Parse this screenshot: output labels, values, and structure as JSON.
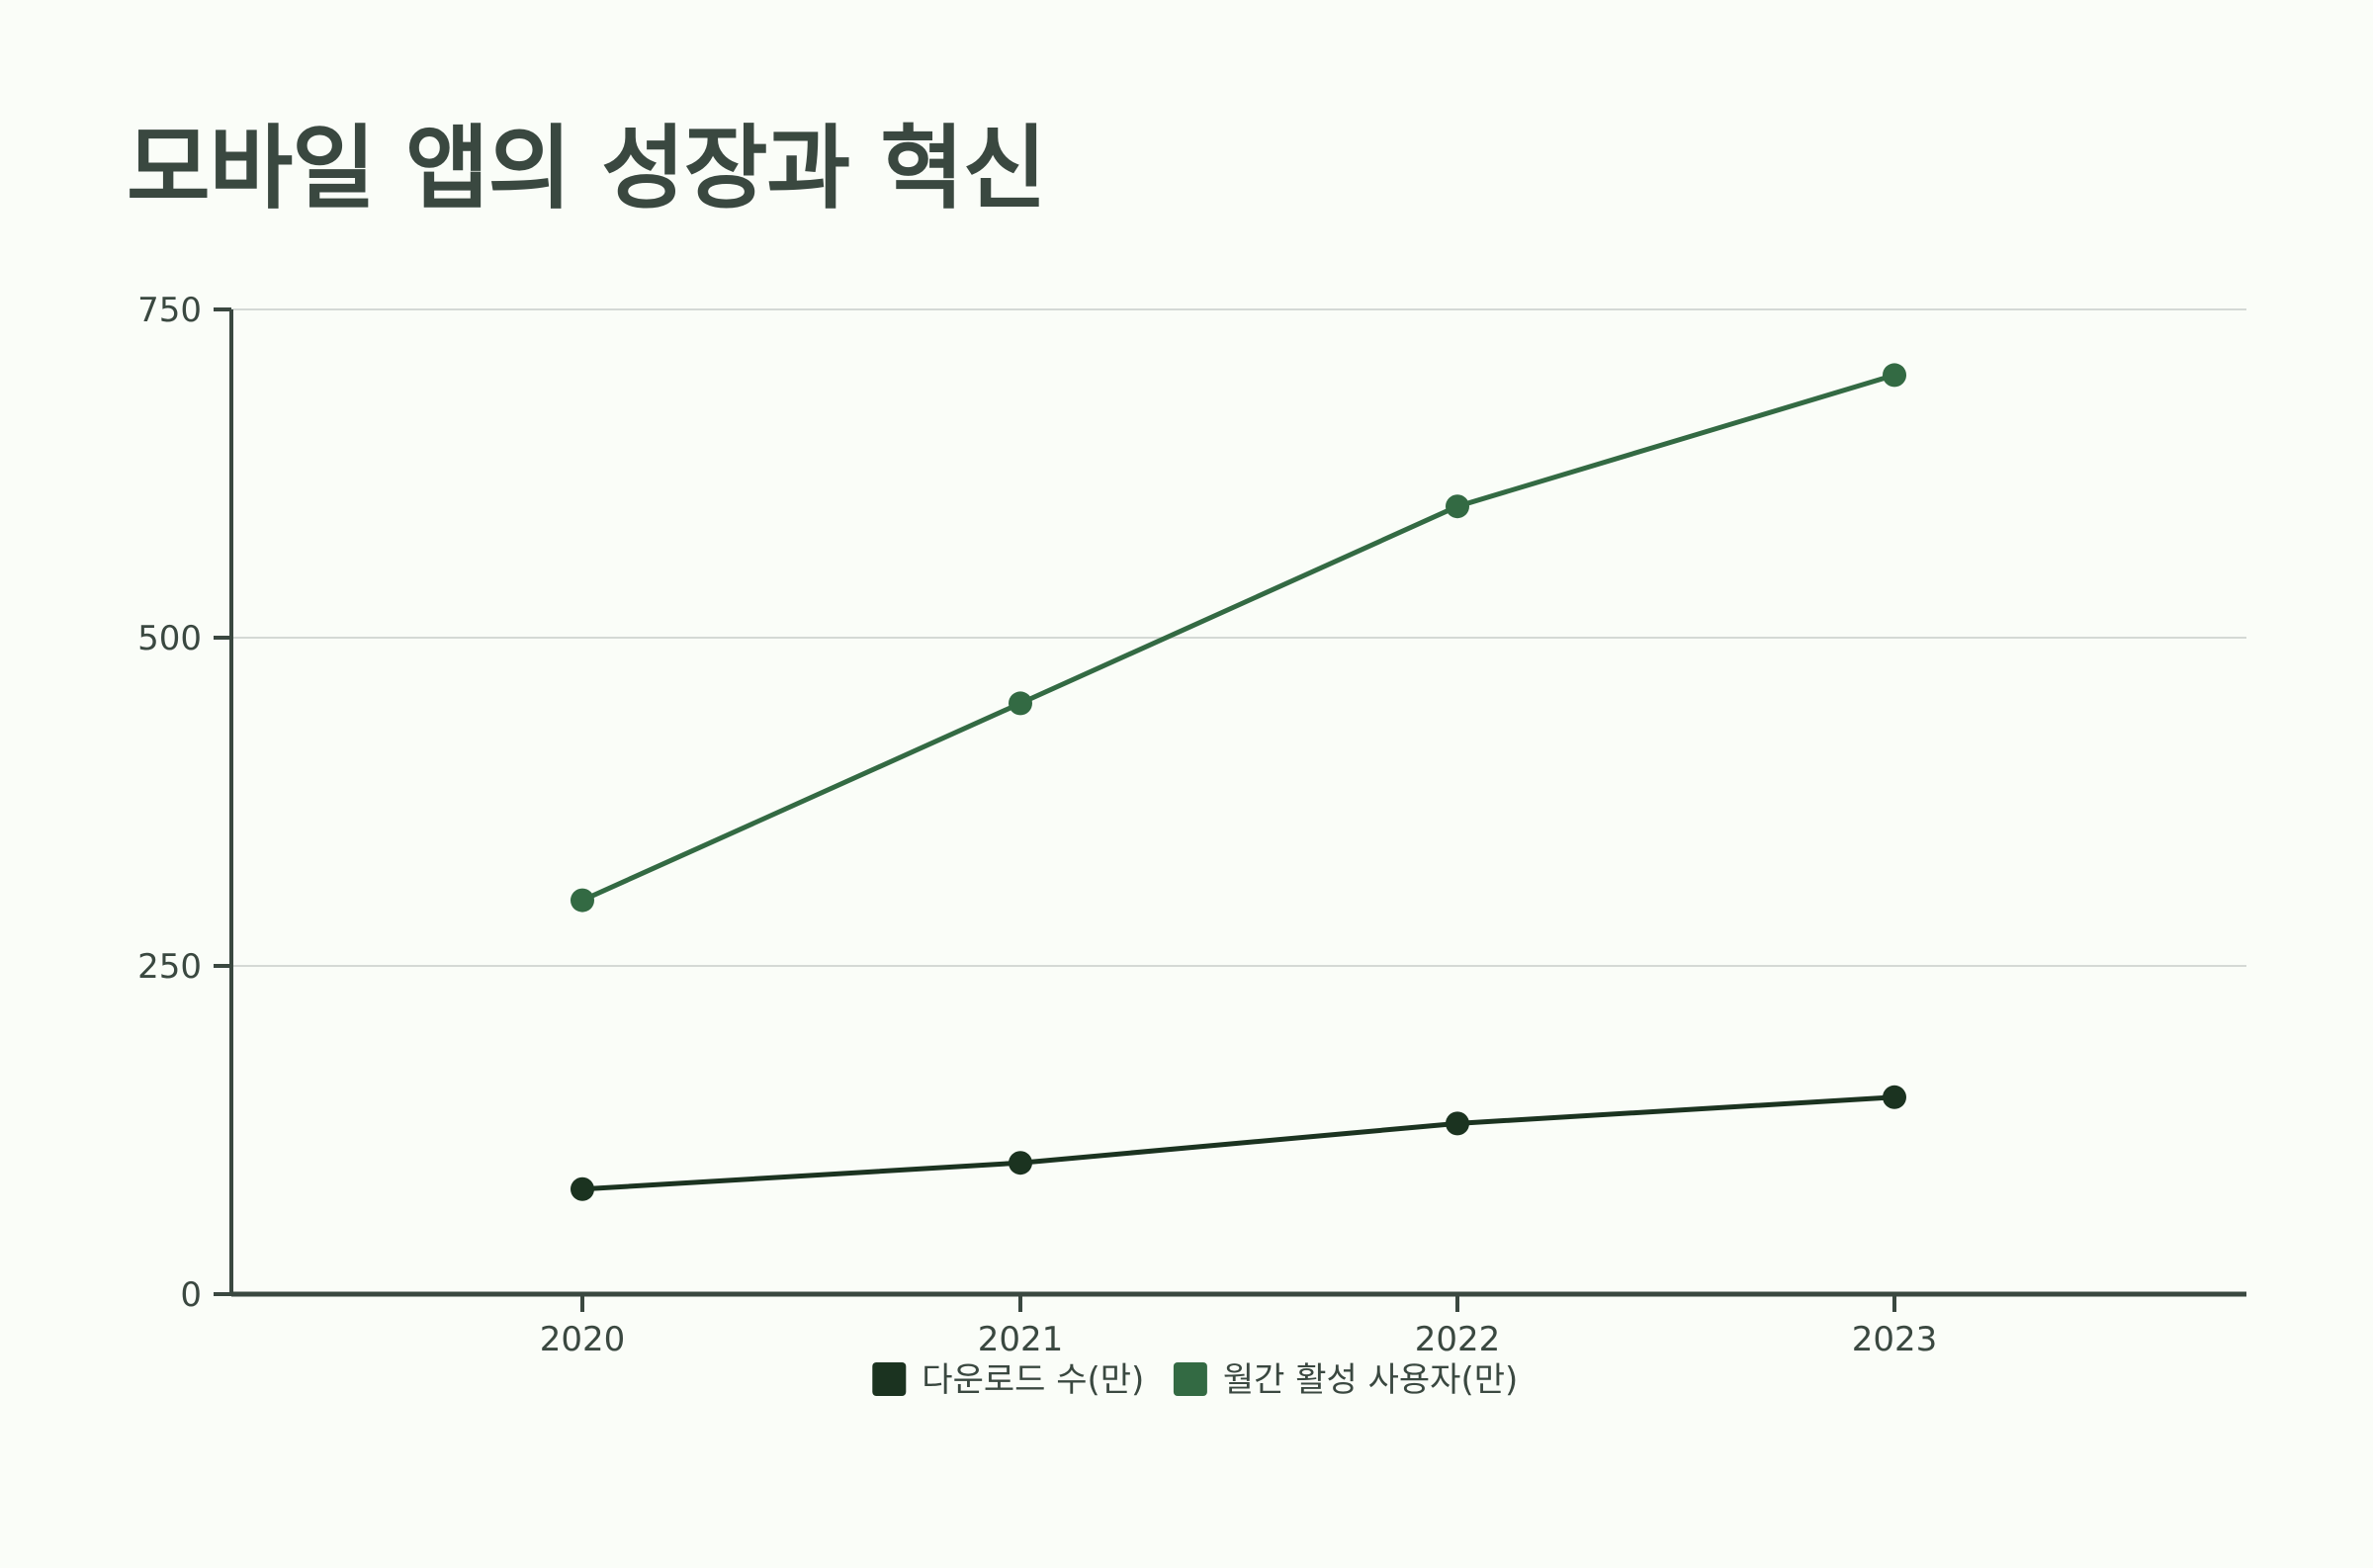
{
  "chart_data": {
    "type": "line",
    "title": "모바일 앱의 성장과 혁신",
    "categories": [
      "2020",
      "2021",
      "2022",
      "2023"
    ],
    "series": [
      {
        "name": "다운로드 수(만)",
        "values": [
          80,
          100,
          130,
          150
        ],
        "color": "#1b3320"
      },
      {
        "name": "월간 활성 사용자(만)",
        "values": [
          300,
          450,
          600,
          700
        ],
        "color": "#336a43"
      }
    ],
    "ylim": [
      0,
      750
    ],
    "yticks": [
      "0",
      "250",
      "500",
      "750"
    ],
    "grid": true,
    "legend": "bottom-center",
    "axis_color": "#3a4840",
    "grid_color": "#d4d9d5"
  }
}
